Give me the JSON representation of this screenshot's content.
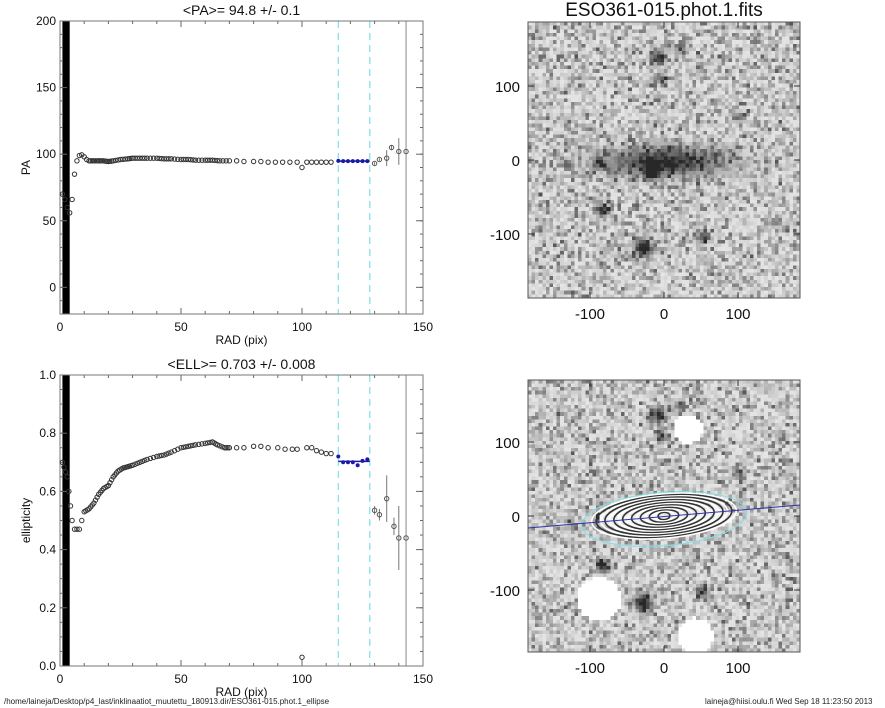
{
  "chart_data": [
    {
      "type": "scatter",
      "title": "<PA>=  94.8 +/-   0.1",
      "xlabel": "RAD (pix)",
      "ylabel": "PA",
      "xlim": [
        0,
        150
      ],
      "ylim": [
        -20,
        200
      ],
      "xticks": [
        "0",
        "50",
        "100",
        "150"
      ],
      "yticks": [
        "0",
        "50",
        "100",
        "150",
        "200"
      ],
      "ytick_values": [
        0,
        50,
        100,
        150,
        200
      ],
      "fit_range": [
        115,
        128
      ],
      "fit_value": 94.8,
      "limit_radius": 143,
      "points": [
        [
          1,
          70
        ],
        [
          2,
          66
        ],
        [
          3,
          60
        ],
        [
          4,
          56
        ],
        [
          5,
          66
        ],
        [
          6,
          85
        ],
        [
          7,
          95
        ],
        [
          8,
          99
        ],
        [
          9,
          99.5
        ],
        [
          10,
          98
        ],
        [
          11,
          96
        ],
        [
          12,
          95
        ],
        [
          14,
          95
        ],
        [
          16,
          95
        ],
        [
          18,
          95
        ],
        [
          20,
          94.5
        ],
        [
          22,
          95
        ],
        [
          25,
          96
        ],
        [
          28,
          96.5
        ],
        [
          30,
          97
        ],
        [
          33,
          97
        ],
        [
          36,
          97
        ],
        [
          40,
          97
        ],
        [
          43,
          96.5
        ],
        [
          46,
          96.5
        ],
        [
          50,
          96
        ],
        [
          53,
          96
        ],
        [
          56,
          95.5
        ],
        [
          60,
          95.5
        ],
        [
          63,
          95.5
        ],
        [
          66,
          95
        ],
        [
          70,
          95
        ],
        [
          73,
          95
        ],
        [
          76,
          94.5
        ],
        [
          80,
          94.5
        ],
        [
          83,
          94.5
        ],
        [
          86,
          94
        ],
        [
          89,
          94
        ],
        [
          92,
          94
        ],
        [
          95,
          94
        ],
        [
          98,
          94
        ],
        [
          100,
          90
        ],
        [
          102,
          94
        ],
        [
          104,
          94
        ],
        [
          106,
          94
        ],
        [
          108,
          94
        ],
        [
          110,
          94
        ],
        [
          112,
          94
        ]
      ],
      "fit_points": [
        [
          115,
          95
        ],
        [
          117,
          94.8
        ],
        [
          119,
          94.8
        ],
        [
          121,
          94.8
        ],
        [
          123,
          94.8
        ],
        [
          125,
          94.8
        ],
        [
          127,
          94.8
        ]
      ],
      "outer_points": [
        [
          130,
          93,
          1
        ],
        [
          132,
          96,
          1
        ],
        [
          135,
          97,
          6
        ],
        [
          137,
          105,
          2
        ],
        [
          140,
          102,
          10
        ],
        [
          143,
          102,
          0
        ]
      ]
    },
    {
      "type": "scatter",
      "title": "<ELL>= 0.703 +/-  0.008",
      "xlabel": "RAD (pix)",
      "ylabel": "ellipticity",
      "xlim": [
        0,
        150
      ],
      "ylim": [
        0,
        1
      ],
      "xticks": [
        "0",
        "50",
        "100",
        "150"
      ],
      "yticks": [
        "0.0",
        "0.2",
        "0.4",
        "0.6",
        "0.8",
        "1.0"
      ],
      "ytick_values": [
        0,
        0.2,
        0.4,
        0.6,
        0.8,
        1.0
      ],
      "fit_range": [
        115,
        128
      ],
      "fit_value": 0.703,
      "limit_radius": 143,
      "points": [
        [
          1,
          0.7
        ],
        [
          3,
          0.65
        ],
        [
          5,
          0.5
        ],
        [
          6,
          0.47
        ],
        [
          7,
          0.47
        ],
        [
          8,
          0.47
        ],
        [
          9,
          0.5
        ],
        [
          10,
          0.53
        ],
        [
          12,
          0.54
        ],
        [
          14,
          0.56
        ],
        [
          16,
          0.59
        ],
        [
          18,
          0.61
        ],
        [
          20,
          0.62
        ],
        [
          22,
          0.65
        ],
        [
          24,
          0.67
        ],
        [
          26,
          0.68
        ],
        [
          28,
          0.685
        ],
        [
          30,
          0.69
        ],
        [
          33,
          0.7
        ],
        [
          36,
          0.71
        ],
        [
          40,
          0.72
        ],
        [
          43,
          0.725
        ],
        [
          46,
          0.735
        ],
        [
          50,
          0.75
        ],
        [
          53,
          0.755
        ],
        [
          56,
          0.76
        ],
        [
          60,
          0.765
        ],
        [
          63,
          0.77
        ],
        [
          65,
          0.76
        ],
        [
          68,
          0.75
        ],
        [
          70,
          0.75
        ],
        [
          73,
          0.75
        ],
        [
          76,
          0.75
        ],
        [
          80,
          0.755
        ],
        [
          83,
          0.755
        ],
        [
          86,
          0.75
        ],
        [
          90,
          0.75
        ],
        [
          93,
          0.745
        ],
        [
          96,
          0.745
        ],
        [
          98,
          0.745
        ],
        [
          100,
          0.03
        ],
        [
          102,
          0.75
        ],
        [
          104,
          0.75
        ],
        [
          106,
          0.74
        ],
        [
          108,
          0.735
        ],
        [
          110,
          0.73
        ],
        [
          112,
          0.73
        ]
      ],
      "fit_points": [
        [
          115,
          0.72
        ],
        [
          117,
          0.7
        ],
        [
          119,
          0.7
        ],
        [
          121,
          0.7
        ],
        [
          123,
          0.69
        ],
        [
          125,
          0.705
        ],
        [
          127,
          0.71
        ]
      ],
      "outer_points": [
        [
          130,
          0.535,
          0.015
        ],
        [
          132,
          0.52,
          0.02
        ],
        [
          135,
          0.575,
          0.08
        ],
        [
          138,
          0.48,
          0.03
        ],
        [
          140,
          0.44,
          0.11
        ],
        [
          143,
          0.44,
          0
        ]
      ]
    }
  ],
  "images": {
    "title": "ESO361-015.phot.1.fits",
    "xticks": [
      "-100",
      "0",
      "100"
    ],
    "yticks": [
      "100",
      "0",
      "-100"
    ]
  },
  "footer": {
    "path": "/home/laineja/Desktop/p4_last/inklinaatiot_muutettu_180913.dir/ESO361-015.phot.1_ellipse",
    "stamp": "laineja@hiisi.oulu.fi  Wed Sep 18 11:23:50 2013"
  },
  "colors": {
    "fit": "#1a1aa8",
    "range": "#7fe0e8",
    "limit": "#888888",
    "points": "#444444"
  }
}
